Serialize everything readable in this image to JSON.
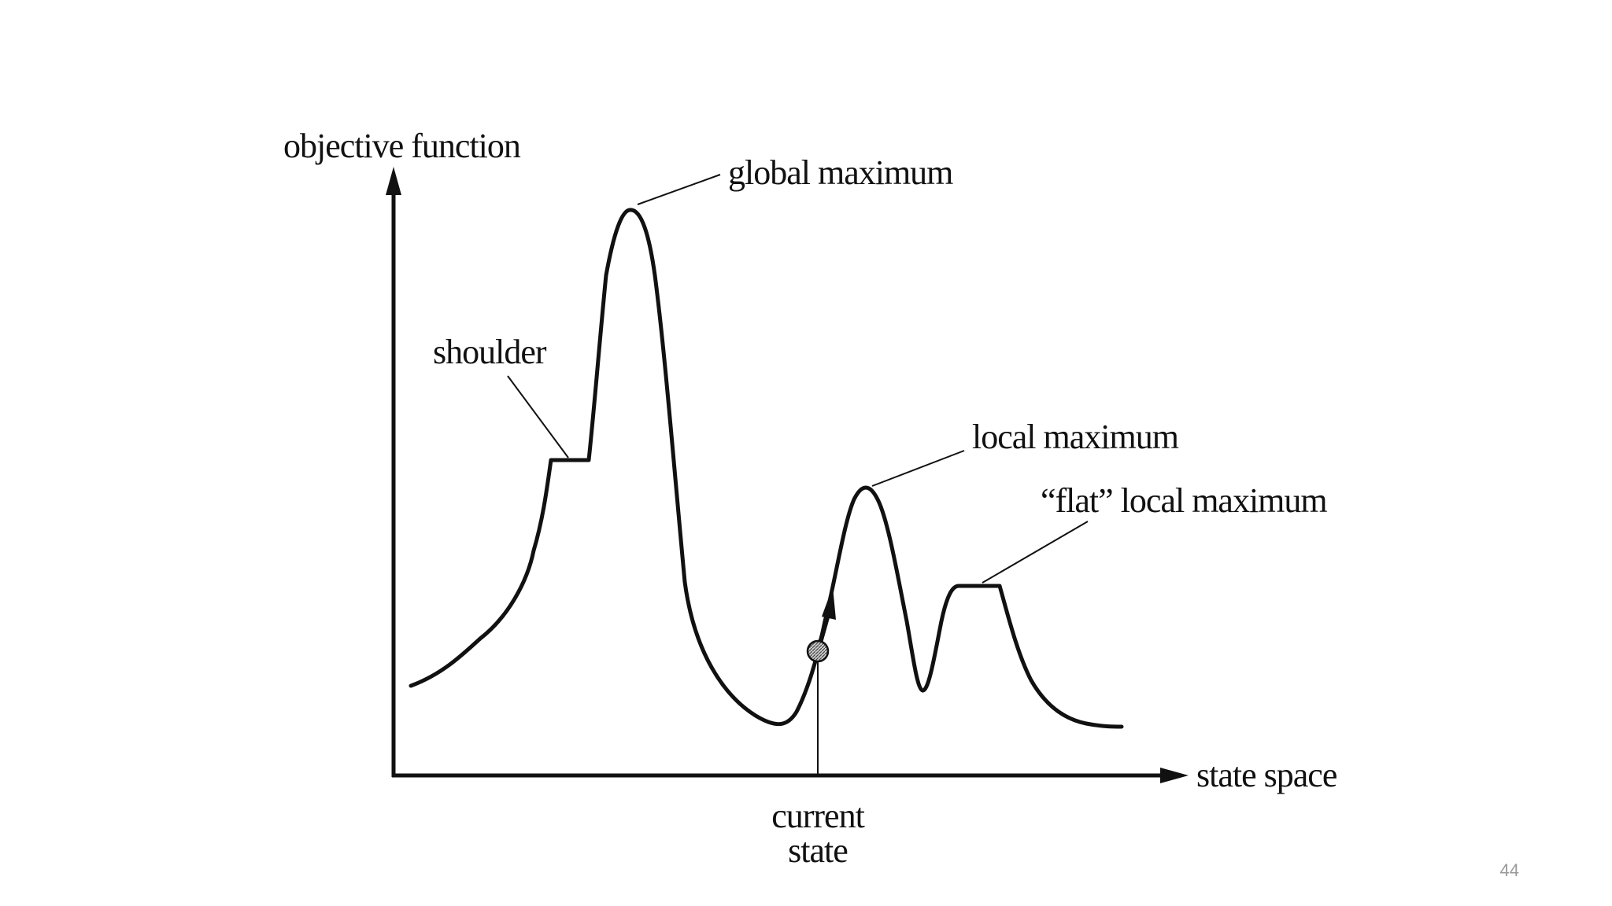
{
  "diagram": {
    "y_axis_label": "objective function",
    "x_axis_label": "state space",
    "annotations": {
      "global_maximum": "global maximum",
      "shoulder": "shoulder",
      "local_maximum": "local maximum",
      "flat_local_maximum": "“flat” local maximum",
      "current_state_line1": "current",
      "current_state_line2": "state"
    },
    "colors": {
      "ink": "#111111",
      "marker_fill": "#555555"
    }
  },
  "slide_number": "44"
}
